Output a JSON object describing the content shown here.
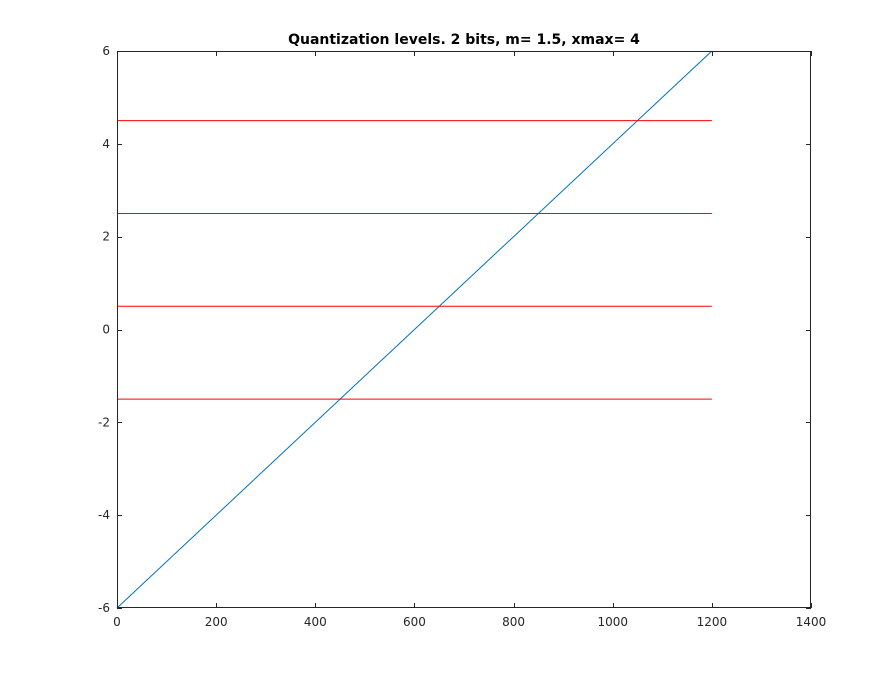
{
  "chart_data": {
    "type": "line",
    "title": "Quantization levels. 2 bits, m= 1.5, xmax= 4",
    "xlabel": "",
    "ylabel": "",
    "xlim": [
      0,
      1400
    ],
    "ylim": [
      -6,
      6
    ],
    "xticks": [
      0,
      200,
      400,
      600,
      800,
      1000,
      1200,
      1400
    ],
    "yticks": [
      -6,
      -4,
      -2,
      0,
      2,
      4,
      6
    ],
    "xtick_labels": [
      "0",
      "200",
      "400",
      "600",
      "800",
      "1000",
      "1200",
      "1400"
    ],
    "ytick_labels": [
      "-6",
      "-4",
      "-2",
      "0",
      "2",
      "4",
      "6"
    ],
    "grid": false,
    "box": true,
    "series": [
      {
        "kind": "ramp",
        "color": "#0072BD",
        "x": [
          0,
          1200
        ],
        "y": [
          -6,
          6
        ]
      },
      {
        "kind": "quantization-level",
        "color": "#FF0000",
        "x": [
          0,
          1200
        ],
        "y": [
          4.5,
          4.5
        ]
      },
      {
        "kind": "quantization-level",
        "color": "#FF0000",
        "x": [
          0,
          1200
        ],
        "y": [
          2.5,
          2.5
        ]
      },
      {
        "kind": "quantization-level",
        "color": "#FF0000",
        "x": [
          0,
          1200
        ],
        "y": [
          0.5,
          0.5
        ]
      },
      {
        "kind": "quantization-level",
        "color": "#FF0000",
        "x": [
          0,
          1200
        ],
        "y": [
          -1.5,
          -1.5
        ]
      }
    ]
  }
}
